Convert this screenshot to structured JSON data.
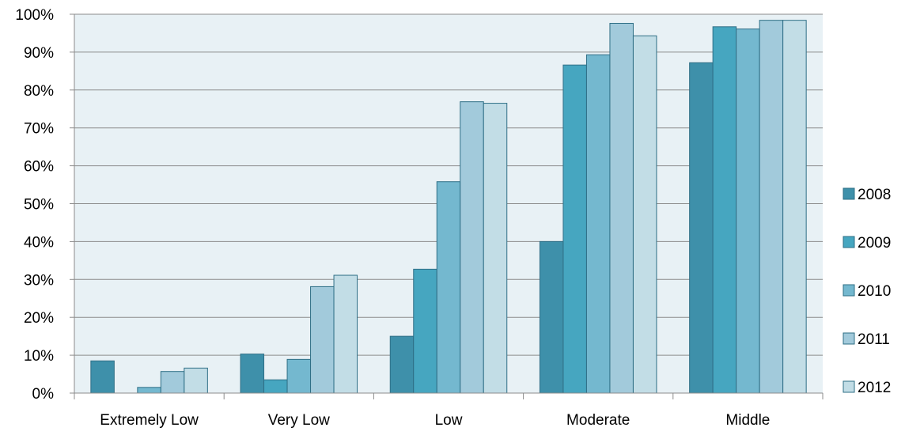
{
  "chart_data": {
    "type": "bar",
    "title": "",
    "xlabel": "",
    "ylabel": "",
    "categories": [
      "Extremely Low",
      "Very Low",
      "Low",
      "Moderate",
      "Middle"
    ],
    "series": [
      {
        "name": "2008",
        "values": [
          8.5,
          10.3,
          15.0,
          40.0,
          87.2
        ],
        "color": "#3e90aa",
        "stroke": "#2f6f86"
      },
      {
        "name": "2009",
        "values": [
          0,
          3.5,
          32.7,
          86.6,
          96.7
        ],
        "color": "#46a6c0",
        "stroke": "#2f6f86"
      },
      {
        "name": "2010",
        "values": [
          1.5,
          8.9,
          55.8,
          89.3,
          96.1
        ],
        "color": "#74b8cf",
        "stroke": "#2f6f86"
      },
      {
        "name": "2011",
        "values": [
          5.7,
          28.1,
          76.9,
          97.6,
          98.4
        ],
        "color": "#a2cadb",
        "stroke": "#2f6f86"
      },
      {
        "name": "2012",
        "values": [
          6.6,
          31.1,
          76.5,
          94.3,
          98.4
        ],
        "color": "#c2dde6",
        "stroke": "#2f6f86"
      }
    ],
    "ylim": [
      0,
      100
    ],
    "yticks": [
      "0%",
      "10%",
      "20%",
      "30%",
      "40%",
      "50%",
      "60%",
      "70%",
      "80%",
      "90%",
      "100%"
    ],
    "grid": true,
    "legend_position": "right",
    "plot_background": "#e8f1f5"
  }
}
